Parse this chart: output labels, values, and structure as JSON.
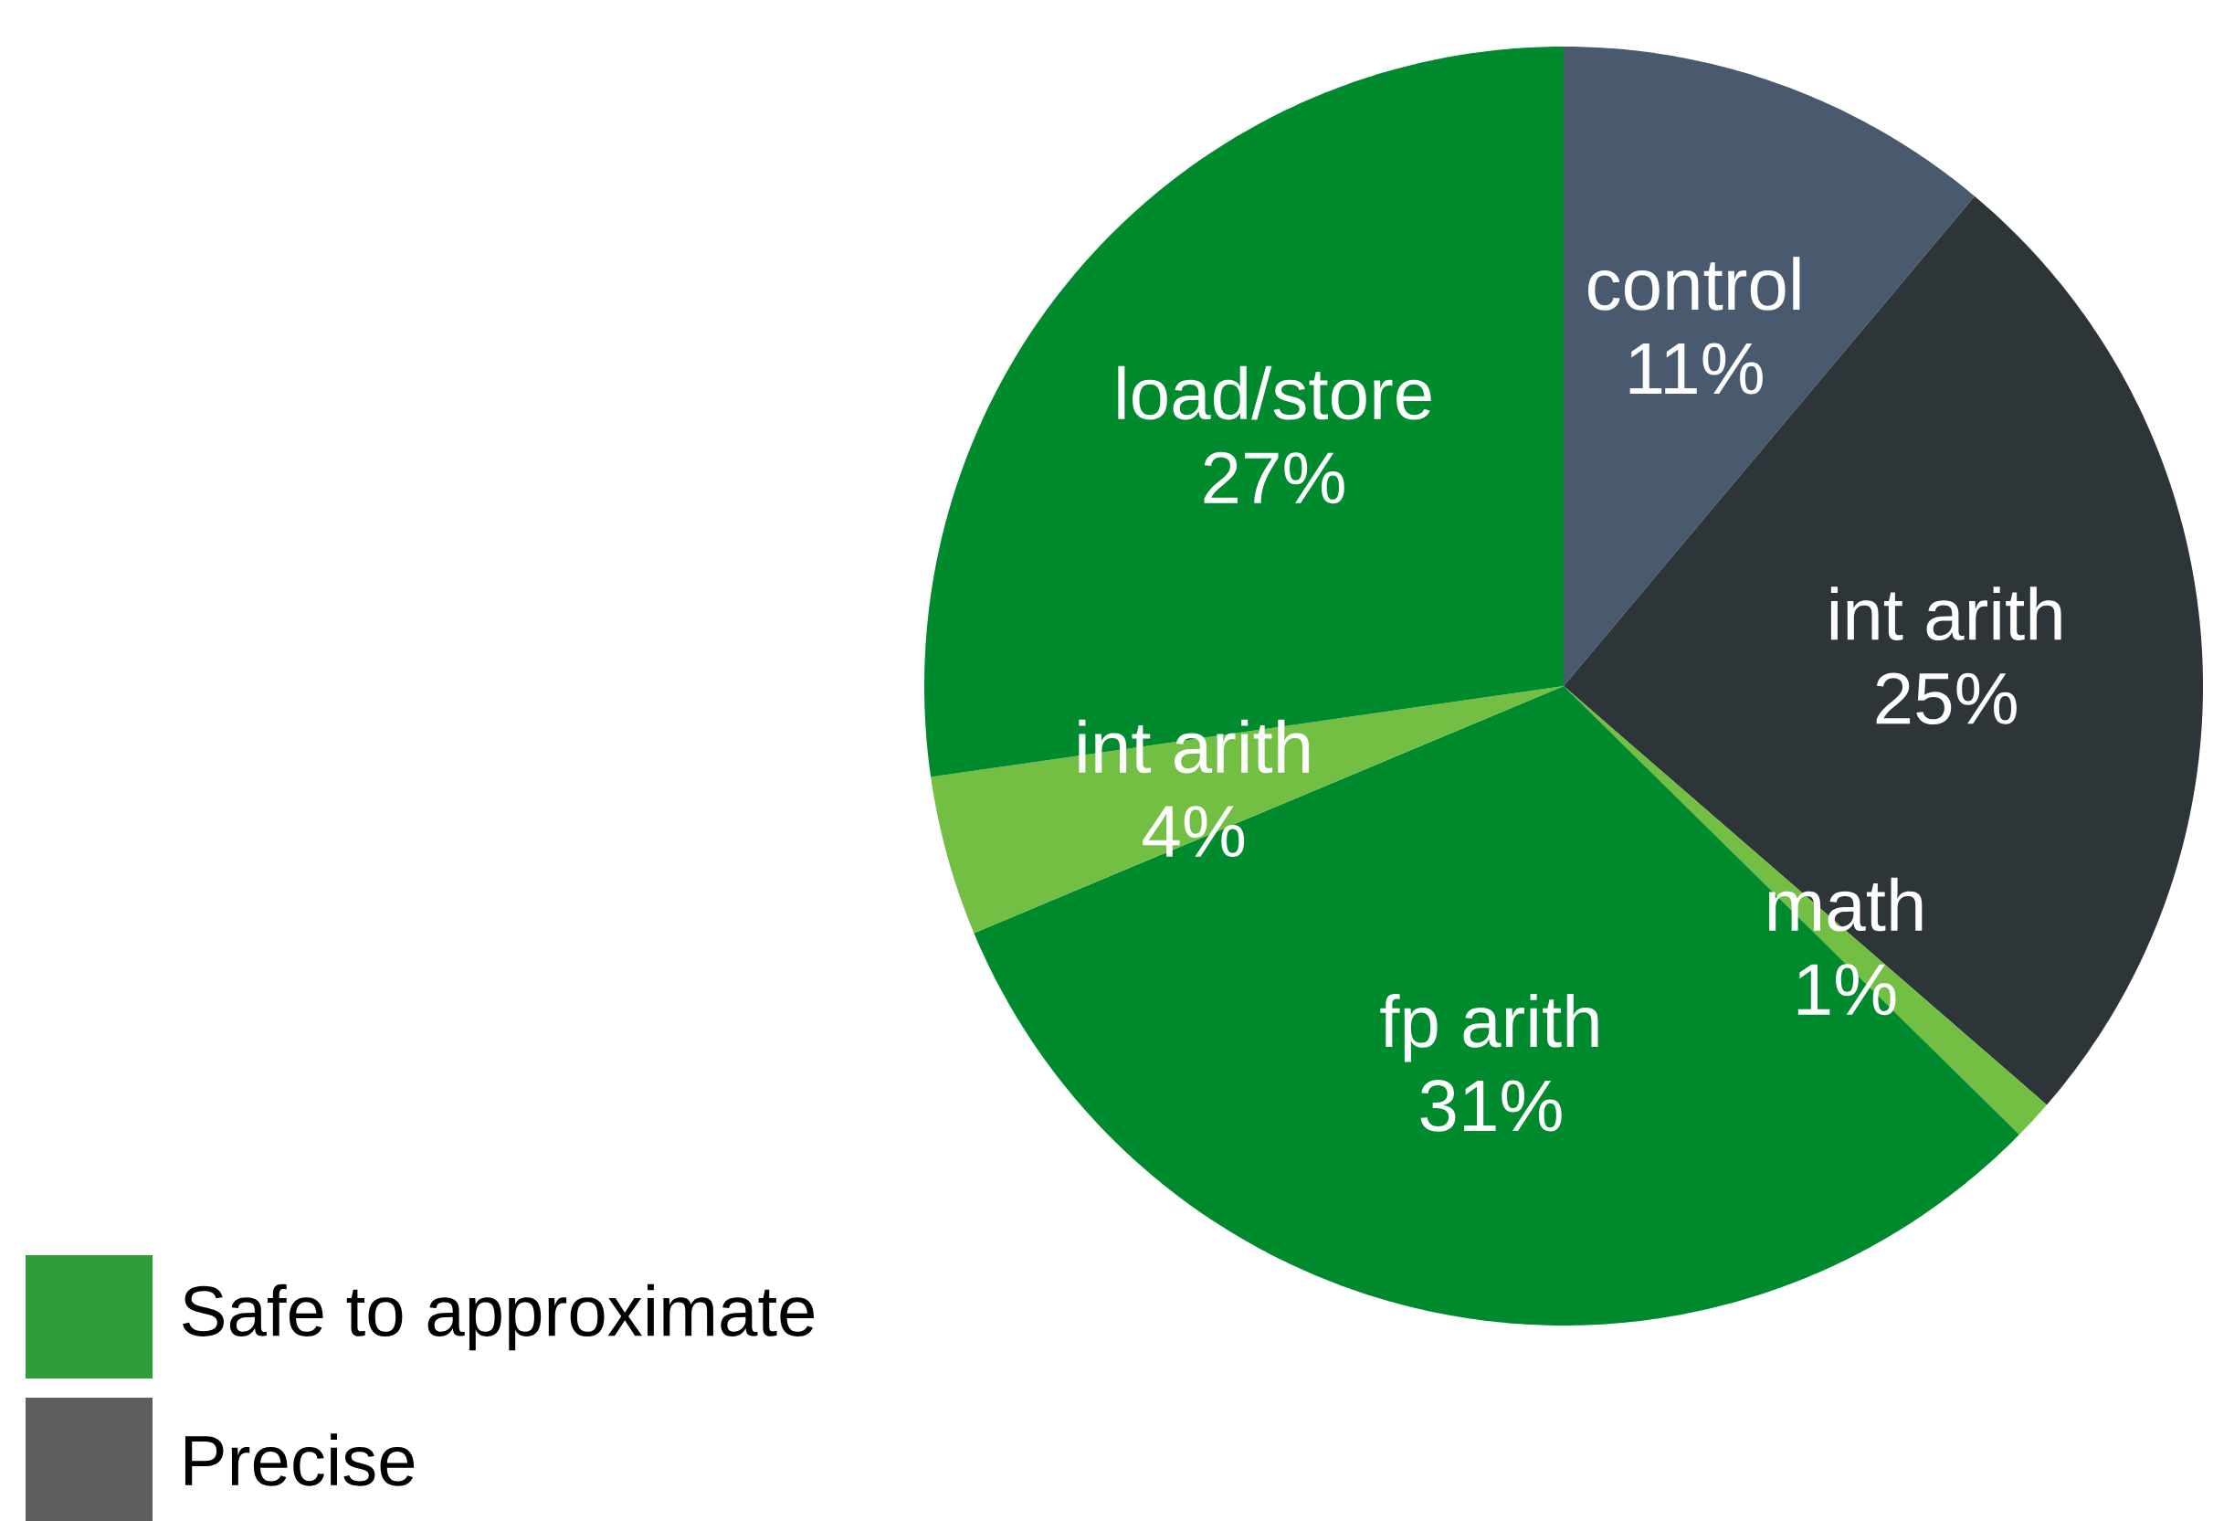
{
  "chart_data": {
    "type": "pie",
    "categories": [
      "control",
      "int arith",
      "math",
      "fp arith",
      "int arith",
      "load/store"
    ],
    "value_labels": [
      "11%",
      "25%",
      "1%",
      "31%",
      "4%",
      "27%"
    ],
    "colors": [
      "#4a5a6e",
      "#2e3538",
      "#72bf44",
      "#008a2e",
      "#72bf44",
      "#008a2e"
    ],
    "values": [
      11,
      25,
      1,
      31,
      4,
      27
    ],
    "annotations": [
      "Safe to approximate",
      "Precise"
    ]
  }
}
